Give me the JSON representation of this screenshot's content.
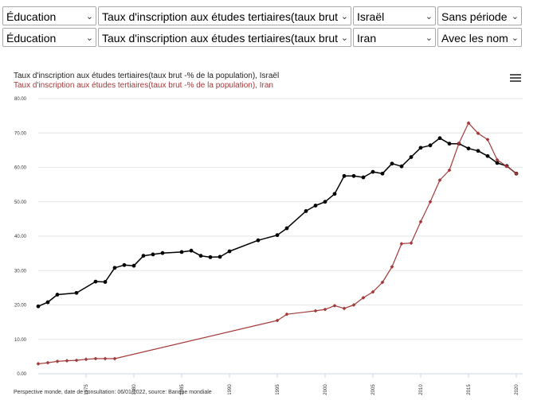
{
  "selectors": {
    "row1": {
      "category": "Éducation",
      "indicator": "Taux d'inscription aux études tertiaires(taux brut -% de la population)",
      "country": "Israël",
      "period": "Sans période"
    },
    "row2": {
      "category": "Éducation",
      "indicator": "Taux d'inscription aux études tertiaires(taux brut -% de la population)",
      "country": "Iran",
      "labels": "Avec les noms de"
    }
  },
  "colors": {
    "series1": "#000000",
    "series2": "#a33a3a",
    "grid": "#e6e6e6"
  },
  "menu_icon": "hamburger-menu-icon",
  "footer": "Perspective monde, date de consultation: 06/01/2022, source: Banque mondiale",
  "chart_data": {
    "type": "line",
    "title": "",
    "xlabel": "",
    "ylabel": "",
    "xlim": [
      1970,
      2020
    ],
    "ylim": [
      0,
      80
    ],
    "yticks": [
      "0.00",
      "10.00",
      "20.00",
      "30.00",
      "40.00",
      "50.00",
      "60.00",
      "70.00",
      "80.00"
    ],
    "xticks": [
      "1975",
      "1980",
      "1985",
      "1990",
      "1995",
      "2000",
      "2005",
      "2010",
      "2015",
      "2020"
    ],
    "grid": true,
    "series": [
      {
        "name": "Taux d'inscription aux études tertiaires(taux brut -% de la population), Israël",
        "color": "#000000",
        "points": [
          [
            1970,
            19.6
          ],
          [
            1971,
            20.8
          ],
          [
            1972,
            23.0
          ],
          [
            1974,
            23.5
          ],
          [
            1976,
            26.8
          ],
          [
            1977,
            26.7
          ],
          [
            1978,
            30.8
          ],
          [
            1979,
            31.6
          ],
          [
            1980,
            31.4
          ],
          [
            1981,
            34.3
          ],
          [
            1982,
            34.7
          ],
          [
            1983,
            35.1
          ],
          [
            1985,
            35.4
          ],
          [
            1986,
            35.8
          ],
          [
            1987,
            34.3
          ],
          [
            1988,
            33.9
          ],
          [
            1989,
            34.0
          ],
          [
            1990,
            35.6
          ],
          [
            1993,
            38.8
          ],
          [
            1995,
            40.3
          ],
          [
            1996,
            42.3
          ],
          [
            1998,
            47.3
          ],
          [
            1999,
            48.9
          ],
          [
            2000,
            50.0
          ],
          [
            2001,
            52.3
          ],
          [
            2002,
            57.5
          ],
          [
            2003,
            57.5
          ],
          [
            2004,
            57.1
          ],
          [
            2005,
            58.7
          ],
          [
            2006,
            58.2
          ],
          [
            2007,
            61.1
          ],
          [
            2008,
            60.3
          ],
          [
            2009,
            63.0
          ],
          [
            2010,
            65.7
          ],
          [
            2011,
            66.4
          ],
          [
            2012,
            68.5
          ],
          [
            2013,
            66.9
          ],
          [
            2014,
            66.9
          ],
          [
            2015,
            65.5
          ],
          [
            2016,
            64.8
          ],
          [
            2017,
            63.3
          ],
          [
            2018,
            61.3
          ],
          [
            2019,
            60.4
          ],
          [
            2020,
            58.2
          ]
        ]
      },
      {
        "name": "Taux d'inscription aux études tertiaires(taux brut -% de la population), Iran",
        "color": "#a33a3a",
        "points": [
          [
            1970,
            2.9
          ],
          [
            1971,
            3.2
          ],
          [
            1972,
            3.6
          ],
          [
            1973,
            3.8
          ],
          [
            1974,
            3.9
          ],
          [
            1975,
            4.2
          ],
          [
            1976,
            4.4
          ],
          [
            1977,
            4.4
          ],
          [
            1978,
            4.4
          ],
          [
            1995,
            15.5
          ],
          [
            1996,
            17.3
          ],
          [
            1999,
            18.3
          ],
          [
            2000,
            18.7
          ],
          [
            2001,
            19.8
          ],
          [
            2002,
            19.0
          ],
          [
            2003,
            20.0
          ],
          [
            2004,
            22.1
          ],
          [
            2005,
            23.8
          ],
          [
            2006,
            26.6
          ],
          [
            2007,
            31.1
          ],
          [
            2008,
            37.8
          ],
          [
            2009,
            38.0
          ],
          [
            2010,
            44.2
          ],
          [
            2011,
            50.0
          ],
          [
            2012,
            56.3
          ],
          [
            2013,
            59.2
          ],
          [
            2014,
            67.0
          ],
          [
            2015,
            72.9
          ],
          [
            2016,
            69.9
          ],
          [
            2017,
            68.1
          ],
          [
            2018,
            62.2
          ],
          [
            2019,
            60.3
          ],
          [
            2020,
            58.2
          ]
        ]
      }
    ]
  }
}
